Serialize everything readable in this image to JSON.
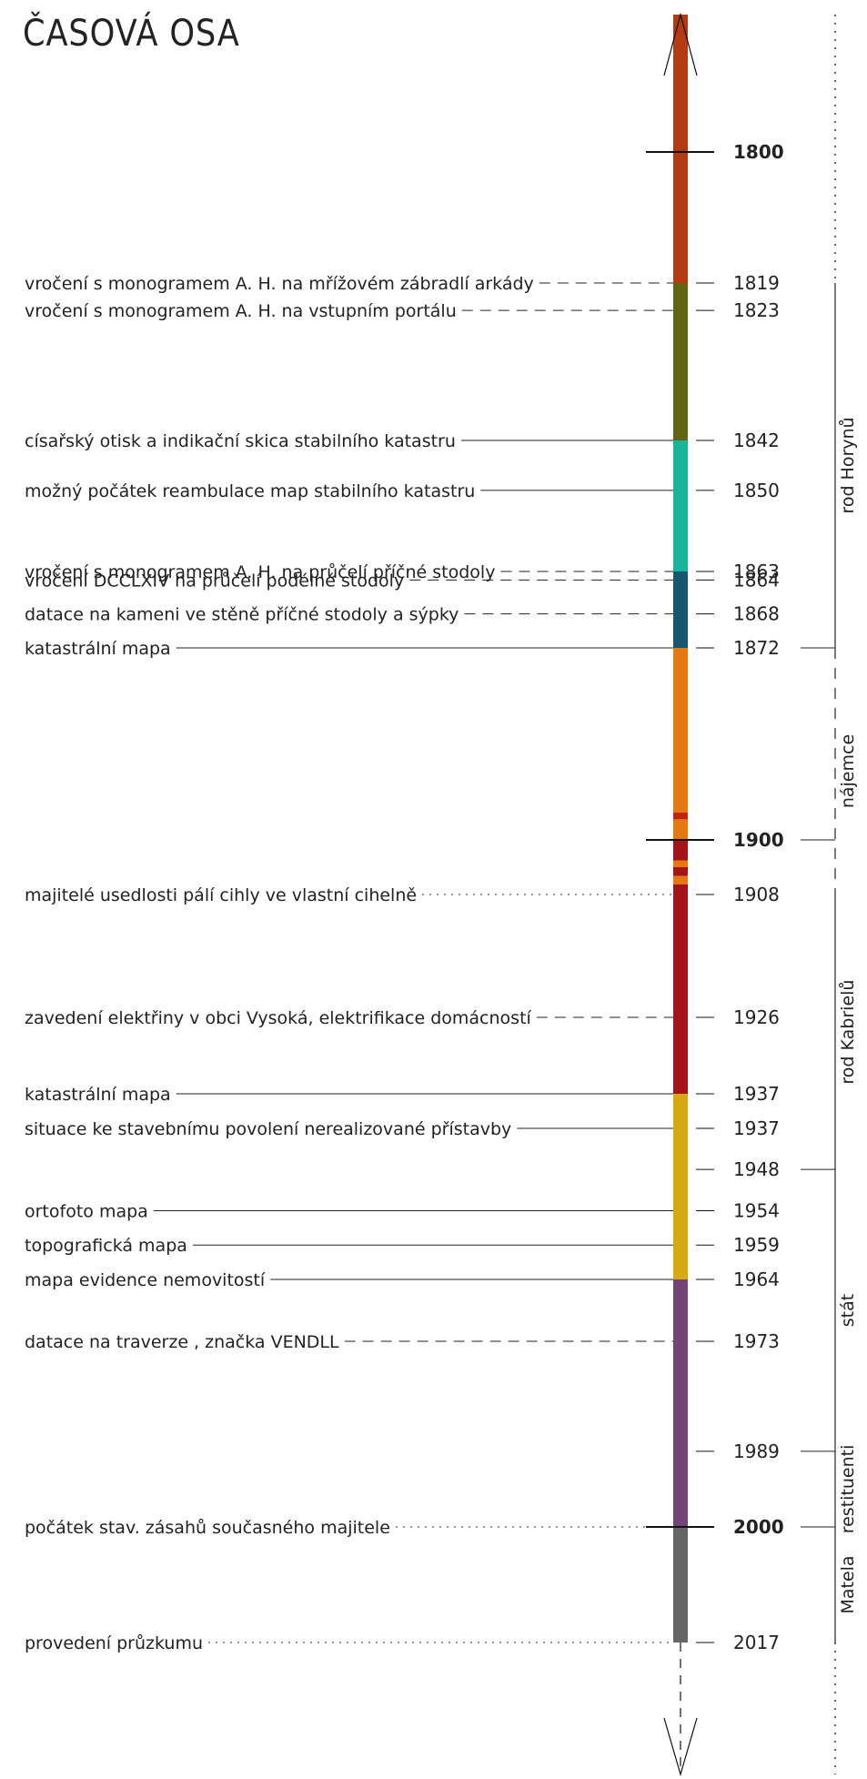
{
  "title": "ČASOVÁ OSA",
  "year_range": [
    1785,
    2017
  ],
  "major_years": [
    1800,
    1900,
    2000
  ],
  "color_periods": [
    {
      "from": 1785,
      "to": 1819,
      "color": "#b33a12"
    },
    {
      "from": 1819,
      "to": 1842,
      "color": "#606414"
    },
    {
      "from": 1842,
      "to": 1863,
      "color": "#17b59a"
    },
    {
      "from": 1863,
      "to": 1872,
      "color": "#15586e"
    },
    {
      "from": 1872,
      "to": 1896,
      "color": "#e57910"
    },
    {
      "from": 1896,
      "to": 1897,
      "color": "#c0230f"
    },
    {
      "from": 1897,
      "to": 1900,
      "color": "#e57910"
    },
    {
      "from": 1900,
      "to": 1903,
      "color": "#a6121a"
    },
    {
      "from": 1903,
      "to": 1904,
      "color": "#e57910"
    },
    {
      "from": 1904,
      "to": 1905.3,
      "color": "#a6121a"
    },
    {
      "from": 1905.3,
      "to": 1906.5,
      "color": "#e57910"
    },
    {
      "from": 1906.5,
      "to": 1937,
      "color": "#a6121a"
    },
    {
      "from": 1937,
      "to": 1964,
      "color": "#d8a812"
    },
    {
      "from": 1964,
      "to": 2000,
      "color": "#734577"
    },
    {
      "from": 2000,
      "to": 2017,
      "color": "#666666"
    }
  ],
  "year_ticks": [
    {
      "year": 1800,
      "label": "1800",
      "major": true
    },
    {
      "year": 1819,
      "label": "1819"
    },
    {
      "year": 1823,
      "label": "1823"
    },
    {
      "year": 1842,
      "label": "1842"
    },
    {
      "year": 1850,
      "label": "1850"
    },
    {
      "year": 1863,
      "label": "1863"
    },
    {
      "year": 1864,
      "label": "1864"
    },
    {
      "year": 1868,
      "label": "1868"
    },
    {
      "year": 1872,
      "label": "1872"
    },
    {
      "year": 1900,
      "label": "1900",
      "major": true
    },
    {
      "year": 1908,
      "label": "1908"
    },
    {
      "year": 1926,
      "label": "1926"
    },
    {
      "year": 1937,
      "label": "1937"
    },
    {
      "year": 1937,
      "label": "1937",
      "nudge": 1
    },
    {
      "year": 1948,
      "label": "1948"
    },
    {
      "year": 1954,
      "label": "1954"
    },
    {
      "year": 1959,
      "label": "1959"
    },
    {
      "year": 1964,
      "label": "1964"
    },
    {
      "year": 1973,
      "label": "1973"
    },
    {
      "year": 1989,
      "label": "1989"
    },
    {
      "year": 2000,
      "label": "2000",
      "major": true
    },
    {
      "year": 2017,
      "label": "2017"
    }
  ],
  "events": [
    {
      "year": 1819,
      "text": "vročení s monogramem A. H. na mřížovém zábradlí arkády",
      "line": "dashed"
    },
    {
      "year": 1823,
      "text": "vročení s monogramem A. H. na vstupním portálu",
      "line": "dashed"
    },
    {
      "year": 1842,
      "text": "císařský otisk a indikační skica stabilního katastru",
      "line": "solid"
    },
    {
      "year": 1850,
      "text": "možný počátek reambulace map stabilního katastru",
      "line": "solid"
    },
    {
      "year": 1863,
      "text": "vročení s monogramem A. H. na průčelí příčné stodoly",
      "line": "dashed"
    },
    {
      "year": 1864,
      "text": "vročení DCCLXIV na průčelí podélné stodoly",
      "line": "dashed"
    },
    {
      "year": 1868,
      "text": "datace na kameni ve stěně příčné stodoly a sýpky",
      "line": "dashed"
    },
    {
      "year": 1872,
      "text": "katastrální mapa",
      "line": "solid"
    },
    {
      "year": 1908,
      "text": "majitelé usedlosti pálí cihly ve vlastní cihelně",
      "line": "dotted"
    },
    {
      "year": 1926,
      "text": "zavedení elektřiny v obci Vysoká, elektrifikace domácností",
      "line": "dashed"
    },
    {
      "year": 1937,
      "text": "katastrální mapa",
      "line": "solid"
    },
    {
      "year": 1937,
      "text": "situace ke stavebnímu povolení nerealizované přístavby",
      "line": "solid",
      "nudge": 1
    },
    {
      "year": 1954,
      "text": "ortofoto mapa",
      "line": "solid"
    },
    {
      "year": 1959,
      "text": "topografická mapa",
      "line": "solid"
    },
    {
      "year": 1964,
      "text": "mapa evidence nemovitostí",
      "line": "solid"
    },
    {
      "year": 1973,
      "text": "datace na traverze , značka VENDLL",
      "line": "dashed"
    },
    {
      "year": 2000,
      "text": "počátek stav. zásahů současného majitele",
      "line": "dotted"
    },
    {
      "year": 2017,
      "text": "provedení průzkumu",
      "line": "dotted"
    }
  ],
  "owners": [
    {
      "from": 1819,
      "to": 1872,
      "label": "rod Horynů",
      "style": "solid"
    },
    {
      "from": 1872,
      "to": 1908,
      "label": "nájemce",
      "style": "dashed"
    },
    {
      "from": 1908,
      "to": 1948,
      "label": "rod Kabrielů",
      "style": "solid"
    },
    {
      "from": 1948,
      "to": 1989,
      "label": "stát",
      "style": "solid"
    },
    {
      "from": 1989,
      "to": 2000,
      "label": "restituenti",
      "style": "solid"
    },
    {
      "from": 2000,
      "to": 2017,
      "label": "Matela",
      "style": "solid"
    }
  ],
  "owner_ticks": [
    1872,
    1900,
    1948,
    1989,
    2000
  ]
}
